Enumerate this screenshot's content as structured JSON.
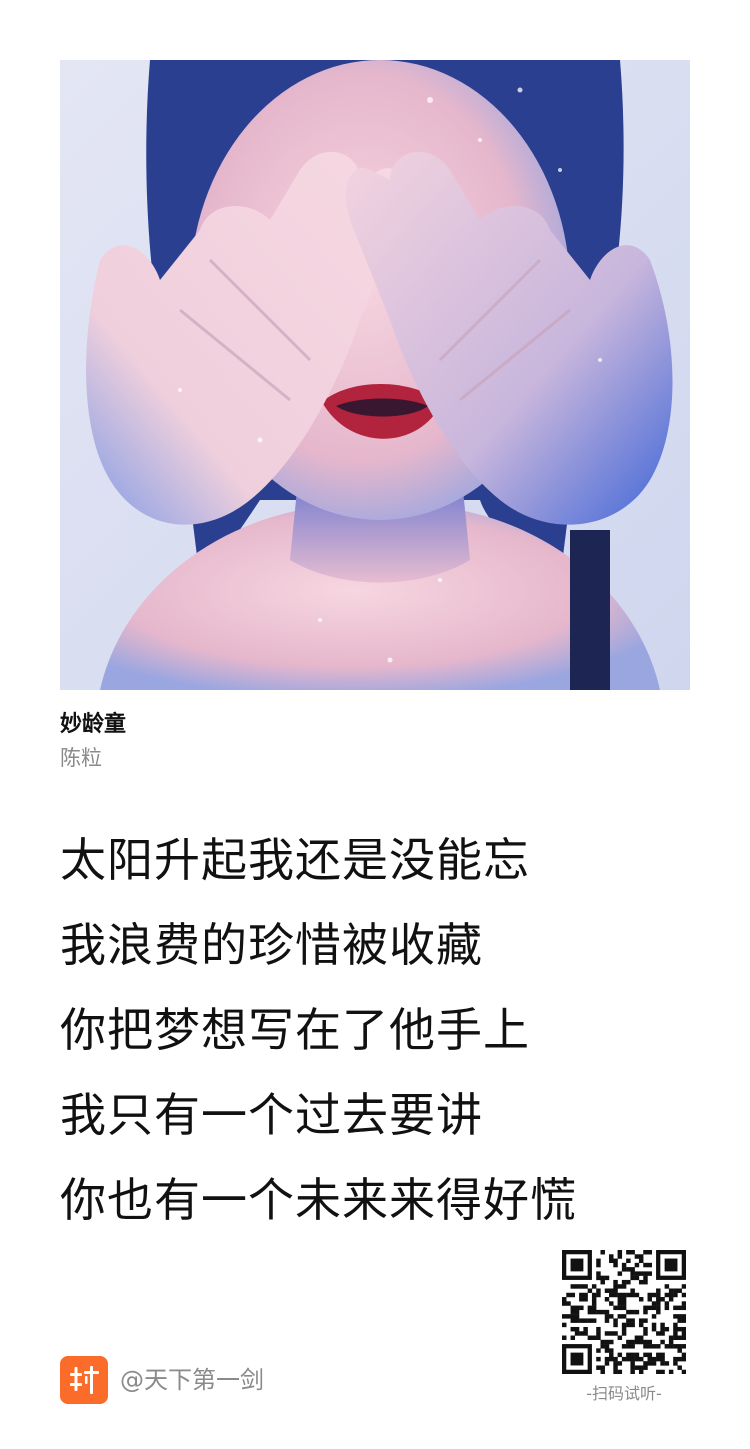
{
  "song": {
    "title": "妙龄童",
    "artist": "陈粒"
  },
  "cover": {
    "icon": "album-cover-photo"
  },
  "lyrics": [
    "太阳升起我还是没能忘",
    "我浪费的珍惜被收藏",
    "你把梦想写在了他手上",
    "我只有一个过去要讲",
    "你也有一个未来来得好慌"
  ],
  "share": {
    "handle": "@天下第一剑",
    "qr_caption": "-扫码试听-",
    "brand_color": "#fb6b2a",
    "brand_icon": "xiami-logo-icon",
    "qr_icon": "qr-code-icon"
  }
}
